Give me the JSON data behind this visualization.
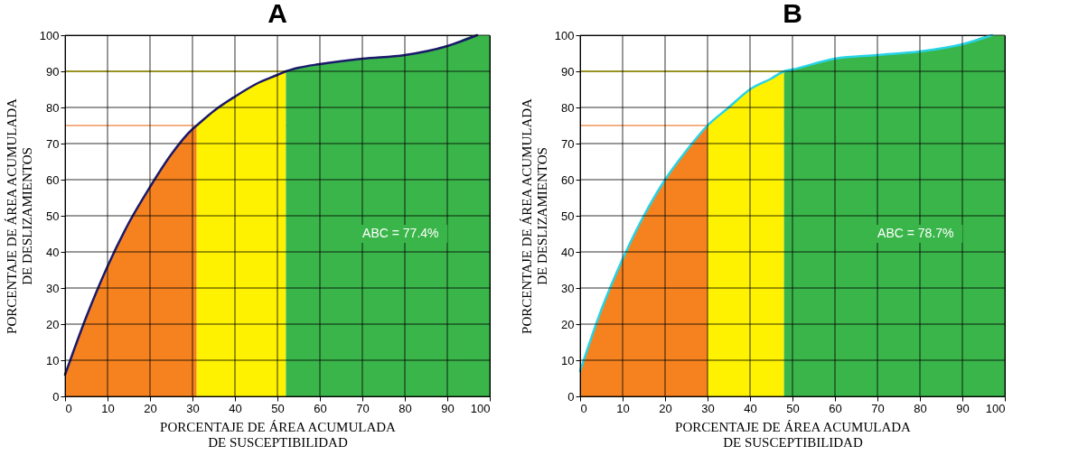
{
  "chart_data": [
    {
      "type": "area",
      "title": "A",
      "xlabel": "PORCENTAJE DE ÁREA ACUMULADA DE SUSCEPTIBILIDAD",
      "ylabel": "PORCENTAJE DE ÁREA ACUMULADA DE DESLIZAMIENTOS",
      "xlim": [
        0,
        100
      ],
      "ylim": [
        0,
        100
      ],
      "xticks": [
        0,
        10,
        20,
        30,
        40,
        50,
        60,
        70,
        80,
        90,
        100
      ],
      "yticks": [
        0,
        10,
        20,
        30,
        40,
        50,
        60,
        70,
        80,
        90,
        100
      ],
      "grid": true,
      "legend": false,
      "series": [
        {
          "color": "#f5821f",
          "x": [
            0,
            5,
            10,
            15,
            20,
            25,
            30,
            31
          ],
          "values": [
            6,
            22,
            36,
            48,
            58,
            67,
            74,
            75
          ]
        },
        {
          "color": "#fff200",
          "x": [
            31,
            35,
            40,
            45,
            50,
            52
          ],
          "values": [
            75,
            79,
            83,
            86.5,
            89,
            90
          ]
        },
        {
          "color": "#3ab54a",
          "x": [
            52,
            55,
            60,
            70,
            80,
            90,
            97,
            100
          ],
          "values": [
            90,
            91,
            92,
            93.5,
            94.5,
            97,
            100,
            100
          ]
        },
        {
          "type": "line",
          "color": "#1b1a6b",
          "x": [
            0,
            5,
            10,
            15,
            20,
            25,
            30,
            31,
            35,
            40,
            45,
            50,
            52,
            55,
            60,
            70,
            80,
            90,
            97
          ],
          "values": [
            6,
            22,
            36,
            48,
            58,
            67,
            74,
            75,
            79,
            83,
            86.5,
            89,
            90,
            91,
            92,
            93.5,
            94.5,
            97,
            100
          ]
        }
      ],
      "ref_lines": [
        {
          "axis": "y",
          "value": 90,
          "color": "#fff200"
        },
        {
          "axis": "y",
          "value": 75,
          "color": "#f0955a"
        }
      ],
      "annotations": [
        "ABC = 77.4%"
      ]
    },
    {
      "type": "area",
      "title": "B",
      "xlabel": "PORCENTAJE DE ÁREA ACUMULADA DE SUSCEPTIBILIDAD",
      "ylabel": "PORCENTAJE DE ÁREA ACUMULADA DE DESLIZAMIENTOS",
      "xlim": [
        0,
        100
      ],
      "ylim": [
        0,
        100
      ],
      "xticks": [
        0,
        10,
        20,
        30,
        40,
        50,
        60,
        70,
        80,
        90,
        100
      ],
      "yticks": [
        0,
        10,
        20,
        30,
        40,
        50,
        60,
        70,
        80,
        90,
        100
      ],
      "grid": true,
      "legend": false,
      "series": [
        {
          "color": "#f5821f",
          "x": [
            0,
            5,
            10,
            15,
            20,
            25,
            30
          ],
          "values": [
            7,
            24,
            38,
            50,
            60,
            68,
            75
          ]
        },
        {
          "color": "#fff200",
          "x": [
            30,
            35,
            40,
            45,
            48
          ],
          "values": [
            75,
            80,
            85,
            88,
            90
          ]
        },
        {
          "color": "#3ab54a",
          "x": [
            48,
            50,
            60,
            70,
            80,
            90,
            97,
            100
          ],
          "values": [
            90,
            90.5,
            93.5,
            94.5,
            95.5,
            97.5,
            100,
            100
          ]
        },
        {
          "type": "line",
          "color": "#27d3e6",
          "x": [
            0,
            5,
            10,
            15,
            20,
            25,
            30,
            35,
            40,
            45,
            48,
            50,
            60,
            70,
            80,
            90,
            97
          ],
          "values": [
            7,
            24,
            38,
            50,
            60,
            68,
            75,
            80,
            85,
            88,
            90,
            90.5,
            93.5,
            94.5,
            95.5,
            97.5,
            100
          ]
        }
      ],
      "ref_lines": [
        {
          "axis": "y",
          "value": 90,
          "color": "#fff200"
        },
        {
          "axis": "y",
          "value": 75,
          "color": "#f0955a"
        }
      ],
      "annotations": [
        "ABC = 78.7%"
      ]
    }
  ]
}
